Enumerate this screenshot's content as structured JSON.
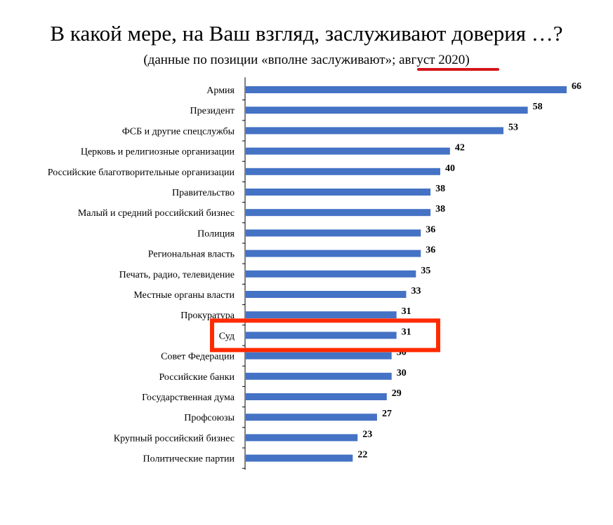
{
  "title": "В какой мере, на Ваш взгляд, заслуживают доверия …?",
  "subtitle_pre": "(данные по позиции «вполне заслуживают»; ",
  "subtitle_hl": "август 2020",
  "subtitle_post": ")",
  "colors": {
    "bar": "#4472c4",
    "highlight": "#ff2a00",
    "underline": "#d4161b",
    "axis": "#000000"
  },
  "chart_data": {
    "type": "bar",
    "orientation": "horizontal",
    "categories": [
      "Армия",
      "Президент",
      "ФСБ и другие спецслужбы",
      "Церковь и религиозные организации",
      "Российские благотворительные организации",
      "Правительство",
      "Малый и средний российский бизнес",
      "Полиция",
      "Региональная власть",
      "Печать, радио, телевидение",
      "Местные органы власти",
      "Прокуратура",
      "Суд",
      "Совет Федерации",
      "Российские банки",
      "Государственная дума",
      "Профсоюзы",
      "Крупный российский бизнес",
      "Политические партии"
    ],
    "values": [
      66,
      58,
      53,
      42,
      40,
      38,
      38,
      36,
      36,
      35,
      33,
      31,
      31,
      30,
      30,
      29,
      27,
      23,
      22
    ],
    "data_labels": [
      "66",
      "58",
      "53",
      "42",
      "40",
      "38",
      "38",
      "36",
      "36",
      "35",
      "33",
      "31",
      "31",
      "30",
      "30",
      "29",
      "27",
      "23",
      "22"
    ],
    "xlim": [
      0,
      66
    ],
    "highlighted_category": "Суд",
    "grid": false
  }
}
